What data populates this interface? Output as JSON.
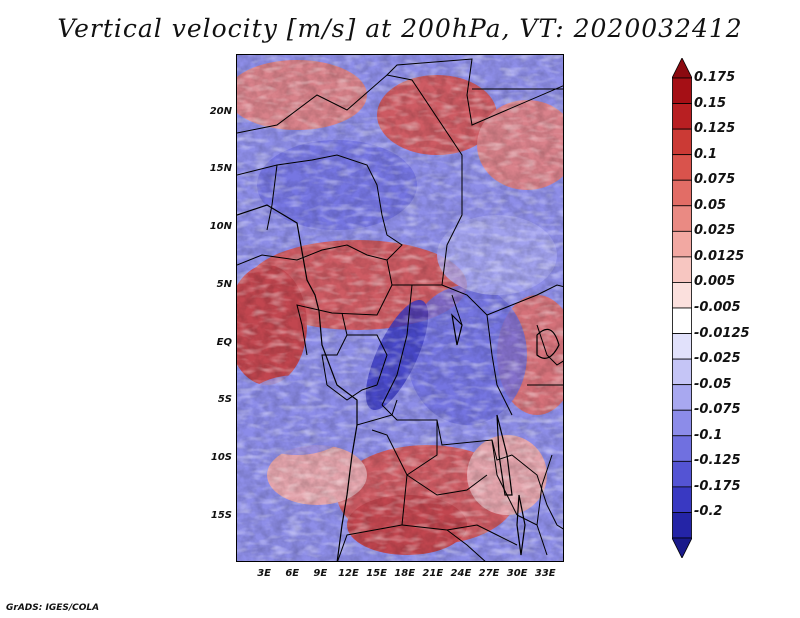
{
  "title": "Vertical velocity [m/s] at 200hPa, VT: 2020032412",
  "footer": "GrADS: IGES/COLA",
  "map": {
    "lon_range": [
      0,
      35
    ],
    "lat_range": [
      -19,
      25
    ],
    "lat_labels": [
      {
        "text": "20N",
        "lat": 20
      },
      {
        "text": "15N",
        "lat": 15
      },
      {
        "text": "10N",
        "lat": 10
      },
      {
        "text": "5N",
        "lat": 5
      },
      {
        "text": "EQ",
        "lat": 0
      },
      {
        "text": "5S",
        "lat": -5
      },
      {
        "text": "10S",
        "lat": -10
      },
      {
        "text": "15S",
        "lat": -15
      }
    ],
    "lon_labels": [
      {
        "text": "3E",
        "lon": 3
      },
      {
        "text": "6E",
        "lon": 6
      },
      {
        "text": "9E",
        "lon": 9
      },
      {
        "text": "12E",
        "lon": 12
      },
      {
        "text": "15E",
        "lon": 15
      },
      {
        "text": "18E",
        "lon": 18
      },
      {
        "text": "21E",
        "lon": 21
      },
      {
        "text": "24E",
        "lon": 24
      },
      {
        "text": "27E",
        "lon": 27
      },
      {
        "text": "30E",
        "lon": 30
      },
      {
        "text": "33E",
        "lon": 33
      }
    ]
  },
  "colorbar": {
    "levels": [
      {
        "label": "0.175",
        "color": "#a50f15"
      },
      {
        "label": "0.15",
        "color": "#b81f22"
      },
      {
        "label": "0.125",
        "color": "#cb3a35"
      },
      {
        "label": "0.1",
        "color": "#d9534c"
      },
      {
        "label": "0.075",
        "color": "#e26d66"
      },
      {
        "label": "0.05",
        "color": "#ea8a83"
      },
      {
        "label": "0.025",
        "color": "#f2a8a2"
      },
      {
        "label": "0.0125",
        "color": "#f7c6c1"
      },
      {
        "label": "0.005",
        "color": "#fbe0dd"
      },
      {
        "label": "-0.005",
        "color": "#ffffff"
      },
      {
        "label": "-0.0125",
        "color": "#e1e1fb"
      },
      {
        "label": "-0.025",
        "color": "#c5c5f6"
      },
      {
        "label": "-0.05",
        "color": "#a8a8f0"
      },
      {
        "label": "-0.075",
        "color": "#8c8ce9"
      },
      {
        "label": "-0.1",
        "color": "#7070e0"
      },
      {
        "label": "-0.125",
        "color": "#5454d4"
      },
      {
        "label": "-0.175",
        "color": "#3939c2"
      },
      {
        "label": "-0.2",
        "color": "#2424a6"
      }
    ],
    "top_color": "#8b0a10",
    "bottom_color": "#1a1a8a"
  }
}
